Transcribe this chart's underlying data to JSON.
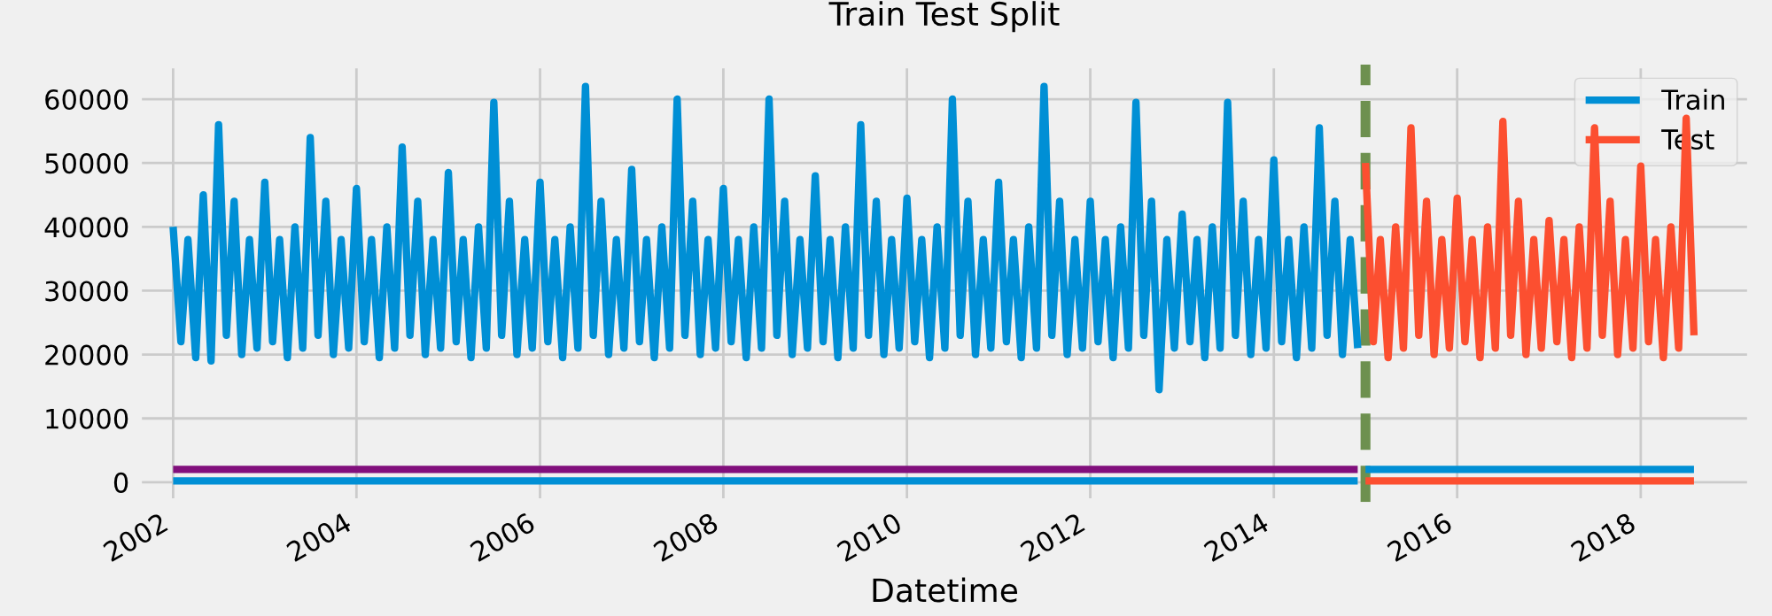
{
  "chart_data": {
    "type": "line",
    "title": "Train Test Split",
    "xlabel": "Datetime",
    "xlim": [
      "2001-08-15",
      "2019-03-15"
    ],
    "xticks": [
      {
        "value": "2002",
        "label": "2002"
      },
      {
        "value": "2004",
        "label": "2004"
      },
      {
        "value": "2006",
        "label": "2006"
      },
      {
        "value": "2008",
        "label": "2008"
      },
      {
        "value": "2010",
        "label": "2010"
      },
      {
        "value": "2012",
        "label": "2012"
      },
      {
        "value": "2014",
        "label": "2014"
      },
      {
        "value": "2016",
        "label": "2016"
      },
      {
        "value": "2018",
        "label": "2018"
      }
    ],
    "ylim": [
      -3100,
      65400
    ],
    "yticks": [
      0,
      10000,
      20000,
      30000,
      40000,
      50000,
      60000
    ],
    "grid": true,
    "legend": "top right",
    "marker": "none",
    "line_style": "solid",
    "ref_lines": [
      {
        "axis": "x",
        "value": "2015-01-01",
        "color": "#6d904f",
        "line_style": "dashed"
      }
    ],
    "series": [
      {
        "name": "Train",
        "color": "#008fd5",
        "x": [
          "2002-01",
          "2002-02",
          "2002-03",
          "2002-04",
          "2002-05",
          "2002-06",
          "2002-07",
          "2002-08",
          "2002-09",
          "2002-10",
          "2002-11",
          "2002-12",
          "2003-01",
          "2003-02",
          "2003-03",
          "2003-04",
          "2003-05",
          "2003-06",
          "2003-07",
          "2003-08",
          "2003-09",
          "2003-10",
          "2003-11",
          "2003-12",
          "2004-01",
          "2004-02",
          "2004-03",
          "2004-04",
          "2004-05",
          "2004-06",
          "2004-07",
          "2004-08",
          "2004-09",
          "2004-10",
          "2004-11",
          "2004-12",
          "2005-01",
          "2005-02",
          "2005-03",
          "2005-04",
          "2005-05",
          "2005-06",
          "2005-07",
          "2005-08",
          "2005-09",
          "2005-10",
          "2005-11",
          "2005-12",
          "2006-01",
          "2006-02",
          "2006-03",
          "2006-04",
          "2006-05",
          "2006-06",
          "2006-07",
          "2006-08",
          "2006-09",
          "2006-10",
          "2006-11",
          "2006-12",
          "2007-01",
          "2007-02",
          "2007-03",
          "2007-04",
          "2007-05",
          "2007-06",
          "2007-07",
          "2007-08",
          "2007-09",
          "2007-10",
          "2007-11",
          "2007-12",
          "2008-01",
          "2008-02",
          "2008-03",
          "2008-04",
          "2008-05",
          "2008-06",
          "2008-07",
          "2008-08",
          "2008-09",
          "2008-10",
          "2008-11",
          "2008-12",
          "2009-01",
          "2009-02",
          "2009-03",
          "2009-04",
          "2009-05",
          "2009-06",
          "2009-07",
          "2009-08",
          "2009-09",
          "2009-10",
          "2009-11",
          "2009-12",
          "2010-01",
          "2010-02",
          "2010-03",
          "2010-04",
          "2010-05",
          "2010-06",
          "2010-07",
          "2010-08",
          "2010-09",
          "2010-10",
          "2010-11",
          "2010-12",
          "2011-01",
          "2011-02",
          "2011-03",
          "2011-04",
          "2011-05",
          "2011-06",
          "2011-07",
          "2011-08",
          "2011-09",
          "2011-10",
          "2011-11",
          "2011-12",
          "2012-01",
          "2012-02",
          "2012-03",
          "2012-04",
          "2012-05",
          "2012-06",
          "2012-07",
          "2012-08",
          "2012-09",
          "2012-10",
          "2012-11",
          "2012-12",
          "2013-01",
          "2013-02",
          "2013-03",
          "2013-04",
          "2013-05",
          "2013-06",
          "2013-07",
          "2013-08",
          "2013-09",
          "2013-10",
          "2013-11",
          "2013-12",
          "2014-01",
          "2014-02",
          "2014-03",
          "2014-04",
          "2014-05",
          "2014-06",
          "2014-07",
          "2014-08",
          "2014-09",
          "2014-10",
          "2014-11",
          "2014-12"
        ],
        "values": [
          40000,
          22000,
          38000,
          19500,
          45000,
          19000,
          56000,
          23000,
          44000,
          20000,
          38000,
          21000,
          47000,
          22000,
          38000,
          19500,
          40000,
          21000,
          54000,
          23000,
          44000,
          20000,
          38000,
          21000,
          46000,
          22000,
          38000,
          19500,
          40000,
          21000,
          52500,
          23000,
          44000,
          20000,
          38000,
          21000,
          48500,
          22000,
          38000,
          19500,
          40000,
          21000,
          59500,
          23000,
          44000,
          20000,
          38000,
          21000,
          47000,
          22000,
          38000,
          19500,
          40000,
          21000,
          62000,
          23000,
          44000,
          20000,
          38000,
          21000,
          49000,
          22000,
          38000,
          19500,
          40000,
          21000,
          60000,
          23000,
          44000,
          20000,
          38000,
          21000,
          46000,
          22000,
          38000,
          19500,
          40000,
          21000,
          60000,
          23000,
          44000,
          20000,
          38000,
          21000,
          48000,
          22000,
          38000,
          19500,
          40000,
          21000,
          56000,
          23000,
          44000,
          20000,
          38000,
          21000,
          44500,
          22000,
          38000,
          19500,
          40000,
          21000,
          60000,
          23000,
          44000,
          20000,
          38000,
          21000,
          47000,
          22000,
          38000,
          19500,
          40000,
          21000,
          62000,
          23000,
          44000,
          20000,
          38000,
          21000,
          44000,
          22000,
          38000,
          19500,
          40000,
          21000,
          59500,
          23000,
          44000,
          14500,
          38000,
          21000,
          42000,
          22000,
          38000,
          19500,
          40000,
          21000,
          59500,
          23000,
          44000,
          20000,
          38000,
          21000,
          50500,
          22000,
          38000,
          19500,
          40000,
          21000,
          55500,
          23000,
          44000,
          20000,
          38000,
          21000
        ]
      },
      {
        "name": "Test",
        "color": "#fc4f30",
        "x": [
          "2015-01",
          "2015-02",
          "2015-03",
          "2015-04",
          "2015-05",
          "2015-06",
          "2015-07",
          "2015-08",
          "2015-09",
          "2015-10",
          "2015-11",
          "2015-12",
          "2016-01",
          "2016-02",
          "2016-03",
          "2016-04",
          "2016-05",
          "2016-06",
          "2016-07",
          "2016-08",
          "2016-09",
          "2016-10",
          "2016-11",
          "2016-12",
          "2017-01",
          "2017-02",
          "2017-03",
          "2017-04",
          "2017-05",
          "2017-06",
          "2017-07",
          "2017-08",
          "2017-09",
          "2017-10",
          "2017-11",
          "2017-12",
          "2018-01",
          "2018-02",
          "2018-03",
          "2018-04",
          "2018-05",
          "2018-06",
          "2018-07",
          "2018-08"
        ],
        "values": [
          50000,
          22000,
          38000,
          19500,
          40000,
          21000,
          55500,
          23000,
          44000,
          20000,
          38000,
          21000,
          44500,
          22000,
          38000,
          19500,
          40000,
          21000,
          56500,
          23000,
          44000,
          20000,
          38000,
          21000,
          41000,
          22000,
          38000,
          19500,
          40000,
          21000,
          55500,
          23000,
          44000,
          20000,
          38000,
          21000,
          49500,
          22000,
          38000,
          19500,
          40000,
          21000,
          57000,
          23000
        ]
      },
      {
        "color": "#810f7c",
        "x": [
          "2002-01",
          "2014-12"
        ],
        "values": [
          2000,
          2000
        ]
      },
      {
        "color": "#008fd5",
        "x": [
          "2002-01",
          "2014-12"
        ],
        "values": [
          200,
          200
        ]
      },
      {
        "color": "#008fd5",
        "x": [
          "2015-01",
          "2018-08"
        ],
        "values": [
          2000,
          2000
        ]
      },
      {
        "color": "#fc4f30",
        "x": [
          "2015-01",
          "2018-08"
        ],
        "values": [
          200,
          200
        ]
      }
    ]
  }
}
